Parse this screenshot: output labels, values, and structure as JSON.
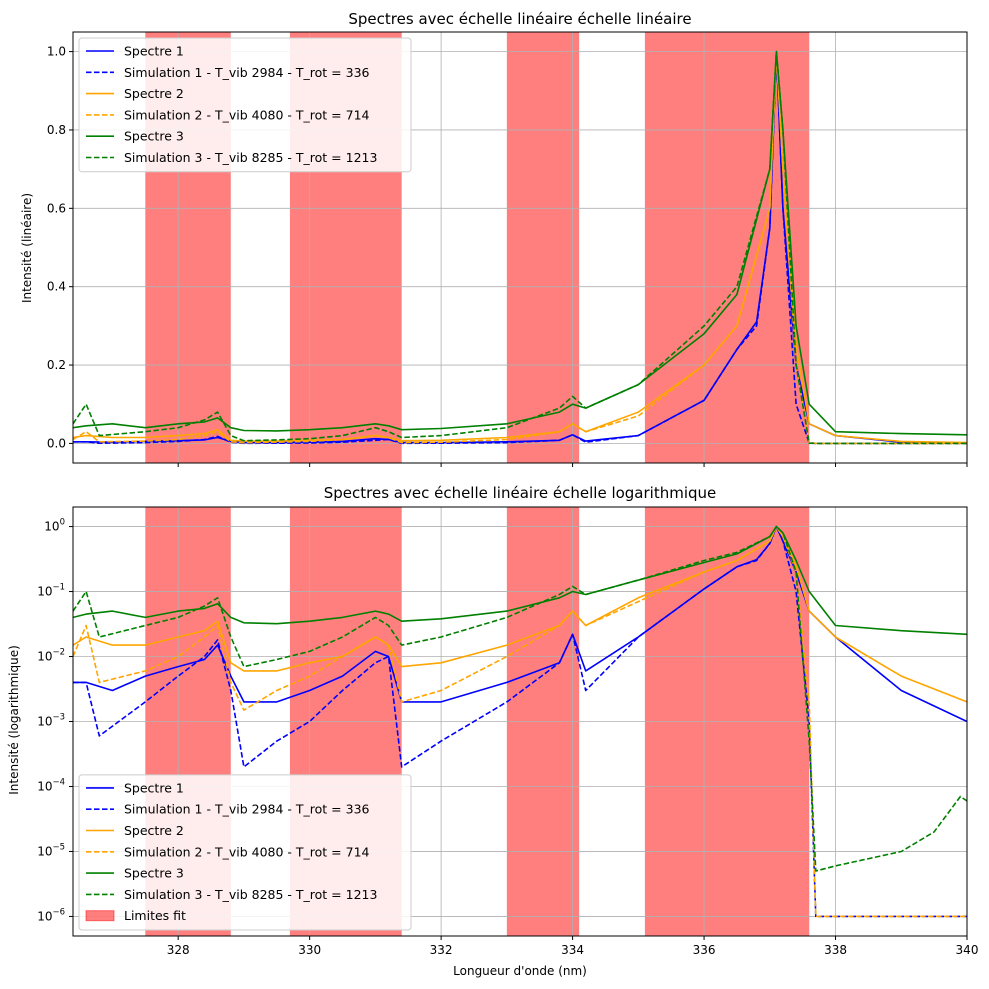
{
  "figure": {
    "xlabel": "Longueur d'onde (nm)",
    "colors": {
      "s1": "#0000ff",
      "s2": "#ffa500",
      "s3": "#008000",
      "span": "#ff0000",
      "grid": "#b0b0b0"
    }
  },
  "chart_data": [
    {
      "type": "line",
      "title": "Spectres avec échelle linéaire échelle linéaire",
      "xlabel": "",
      "ylabel": "Intensité (linéaire)",
      "xlim": [
        326.4,
        340
      ],
      "ylim": [
        -0.05,
        1.05
      ],
      "yscale": "linear",
      "x_ticks": [
        328,
        330,
        332,
        334,
        336,
        338,
        340
      ],
      "y_ticks": [
        "0.0",
        "0.2",
        "0.4",
        "0.6",
        "0.8",
        "1.0"
      ],
      "y_tick_values": [
        0,
        0.2,
        0.4,
        0.6,
        0.8,
        1.0
      ],
      "grid": true,
      "legend_placement": "upper-left",
      "fit_spans": [
        [
          327.5,
          328.8
        ],
        [
          329.7,
          331.4
        ],
        [
          333.0,
          334.1
        ],
        [
          335.1,
          337.6
        ]
      ],
      "legend": [
        {
          "label": "Spectre 1",
          "color": "#0000ff",
          "style": "solid"
        },
        {
          "label": "Simulation 1 - T_vib 2984 - T_rot = 336",
          "color": "#0000ff",
          "style": "dashed"
        },
        {
          "label": "Spectre 2",
          "color": "#ffa500",
          "style": "solid"
        },
        {
          "label": "Simulation 2 - T_vib 4080 - T_rot = 714",
          "color": "#ffa500",
          "style": "dashed"
        },
        {
          "label": "Spectre 3",
          "color": "#008000",
          "style": "solid"
        },
        {
          "label": "Simulation 3 - T_vib 8285 - T_rot = 1213",
          "color": "#008000",
          "style": "dashed"
        }
      ],
      "series": [
        {
          "key": "spectre_1",
          "color": "#0000ff",
          "style": "solid",
          "x": [
            326.4,
            326.6,
            327.0,
            327.5,
            328.0,
            328.4,
            328.6,
            328.8,
            329.0,
            329.5,
            330.0,
            330.5,
            331.0,
            331.2,
            331.4,
            332.0,
            333.0,
            333.8,
            334.0,
            334.2,
            335.0,
            336.0,
            336.5,
            336.8,
            337.0,
            337.1,
            337.2,
            337.4,
            337.6,
            338.0,
            339.0,
            340.0
          ],
          "y": [
            0.004,
            0.004,
            0.003,
            0.005,
            0.007,
            0.009,
            0.015,
            0.005,
            0.002,
            0.002,
            0.003,
            0.005,
            0.012,
            0.01,
            0.002,
            0.002,
            0.004,
            0.008,
            0.022,
            0.006,
            0.02,
            0.11,
            0.24,
            0.31,
            0.55,
            1.0,
            0.6,
            0.2,
            0.05,
            0.02,
            0.003,
            0.001
          ]
        },
        {
          "key": "simulation_1",
          "color": "#0000ff",
          "style": "dashed",
          "x": [
            326.4,
            326.6,
            326.8,
            327.5,
            328.0,
            328.4,
            328.6,
            328.8,
            329.0,
            329.5,
            330.0,
            330.5,
            331.0,
            331.2,
            331.4,
            332.0,
            333.0,
            333.8,
            334.0,
            334.2,
            335.0,
            336.0,
            336.5,
            336.8,
            337.0,
            337.1,
            337.2,
            337.4,
            337.6,
            337.7,
            338.0,
            340.0
          ],
          "y": [
            0.004,
            0.004,
            0.0006,
            0.002,
            0.005,
            0.01,
            0.018,
            0.003,
            0.0002,
            0.0005,
            0.001,
            0.003,
            0.008,
            0.01,
            0.0002,
            0.0005,
            0.002,
            0.008,
            0.022,
            0.003,
            0.02,
            0.11,
            0.24,
            0.3,
            0.55,
            1.0,
            0.6,
            0.1,
            0.001,
            1e-06,
            1e-06,
            1e-06
          ]
        },
        {
          "key": "spectre_2",
          "color": "#ffa500",
          "style": "solid",
          "x": [
            326.4,
            326.6,
            327.0,
            327.5,
            328.0,
            328.4,
            328.6,
            328.8,
            329.0,
            329.5,
            330.0,
            330.5,
            331.0,
            331.2,
            331.4,
            332.0,
            333.0,
            333.8,
            334.0,
            334.2,
            335.0,
            336.0,
            336.5,
            337.0,
            337.1,
            337.2,
            337.4,
            337.6,
            338.0,
            339.0,
            340.0
          ],
          "y": [
            0.015,
            0.02,
            0.015,
            0.015,
            0.02,
            0.025,
            0.035,
            0.008,
            0.006,
            0.006,
            0.008,
            0.01,
            0.02,
            0.015,
            0.007,
            0.008,
            0.015,
            0.03,
            0.05,
            0.03,
            0.08,
            0.2,
            0.3,
            0.6,
            1.0,
            0.7,
            0.25,
            0.05,
            0.02,
            0.005,
            0.002
          ]
        },
        {
          "key": "simulation_2",
          "color": "#ffa500",
          "style": "dashed",
          "x": [
            326.4,
            326.6,
            326.8,
            327.5,
            328.0,
            328.4,
            328.6,
            328.8,
            329.0,
            329.5,
            330.0,
            330.5,
            331.0,
            331.2,
            331.4,
            332.0,
            333.0,
            333.8,
            334.0,
            334.2,
            335.0,
            336.0,
            336.5,
            337.0,
            337.1,
            337.2,
            337.4,
            337.6,
            337.7,
            338.0,
            340.0
          ],
          "y": [
            0.01,
            0.03,
            0.004,
            0.006,
            0.01,
            0.02,
            0.03,
            0.004,
            0.0015,
            0.003,
            0.005,
            0.01,
            0.02,
            0.015,
            0.002,
            0.003,
            0.01,
            0.03,
            0.05,
            0.03,
            0.07,
            0.2,
            0.3,
            0.6,
            1.0,
            0.7,
            0.2,
            0.002,
            1e-06,
            1e-06,
            1e-06
          ]
        },
        {
          "key": "spectre_3",
          "color": "#008000",
          "style": "solid",
          "x": [
            326.4,
            326.6,
            327.0,
            327.5,
            328.0,
            328.4,
            328.6,
            328.8,
            329.0,
            329.5,
            330.0,
            330.5,
            331.0,
            331.2,
            331.4,
            332.0,
            333.0,
            333.8,
            334.0,
            334.2,
            335.0,
            336.0,
            336.5,
            337.0,
            337.1,
            337.2,
            337.4,
            337.6,
            338.0,
            339.0,
            340.0
          ],
          "y": [
            0.04,
            0.045,
            0.05,
            0.04,
            0.05,
            0.055,
            0.065,
            0.04,
            0.033,
            0.032,
            0.035,
            0.04,
            0.05,
            0.045,
            0.035,
            0.038,
            0.05,
            0.08,
            0.1,
            0.09,
            0.15,
            0.28,
            0.38,
            0.7,
            1.0,
            0.8,
            0.3,
            0.1,
            0.03,
            0.025,
            0.022
          ]
        },
        {
          "key": "simulation_3",
          "color": "#008000",
          "style": "dashed",
          "x": [
            326.4,
            326.6,
            326.8,
            327.5,
            328.0,
            328.4,
            328.6,
            328.8,
            329.0,
            329.5,
            330.0,
            330.5,
            331.0,
            331.2,
            331.4,
            332.0,
            333.0,
            333.8,
            334.0,
            334.2,
            335.0,
            336.0,
            336.5,
            337.0,
            337.1,
            337.2,
            337.4,
            337.6,
            337.7,
            338.0,
            339.0,
            339.5,
            339.9,
            340.0
          ],
          "y": [
            0.05,
            0.1,
            0.02,
            0.03,
            0.04,
            0.06,
            0.08,
            0.02,
            0.007,
            0.009,
            0.012,
            0.02,
            0.04,
            0.03,
            0.015,
            0.02,
            0.04,
            0.09,
            0.12,
            0.09,
            0.15,
            0.3,
            0.4,
            0.7,
            1.0,
            0.8,
            0.2,
            0.0005,
            5e-06,
            6e-06,
            1e-05,
            2e-05,
            7e-05,
            6e-05
          ]
        }
      ]
    },
    {
      "type": "line",
      "title": "Spectres avec échelle linéaire échelle logarithmique",
      "xlabel": "Longueur d'onde (nm)",
      "ylabel": "Intensité (logarithmique)",
      "xlim": [
        326.4,
        340
      ],
      "ylim": [
        5e-07,
        2
      ],
      "yscale": "log",
      "x_ticks": [
        328,
        330,
        332,
        334,
        336,
        338,
        340
      ],
      "y_tick_exponents": [
        "-6",
        "-5",
        "-4",
        "-3",
        "-2",
        "-1",
        "0"
      ],
      "grid": true,
      "legend_placement": "lower-left",
      "fit_spans": [
        [
          327.5,
          328.8
        ],
        [
          329.7,
          331.4
        ],
        [
          333.0,
          334.1
        ],
        [
          335.1,
          337.6
        ]
      ],
      "legend": [
        {
          "label": "Spectre 1",
          "color": "#0000ff",
          "style": "solid"
        },
        {
          "label": "Simulation 1 - T_vib 2984 - T_rot = 336",
          "color": "#0000ff",
          "style": "dashed"
        },
        {
          "label": "Spectre 2",
          "color": "#ffa500",
          "style": "solid"
        },
        {
          "label": "Simulation 2 - T_vib 4080 - T_rot = 714",
          "color": "#ffa500",
          "style": "dashed"
        },
        {
          "label": "Spectre 3",
          "color": "#008000",
          "style": "solid"
        },
        {
          "label": "Simulation 3 - T_vib 8285 - T_rot = 1213",
          "color": "#008000",
          "style": "dashed"
        },
        {
          "label": "Limites fit",
          "color": "#ff0000",
          "style": "patch"
        }
      ]
    }
  ]
}
